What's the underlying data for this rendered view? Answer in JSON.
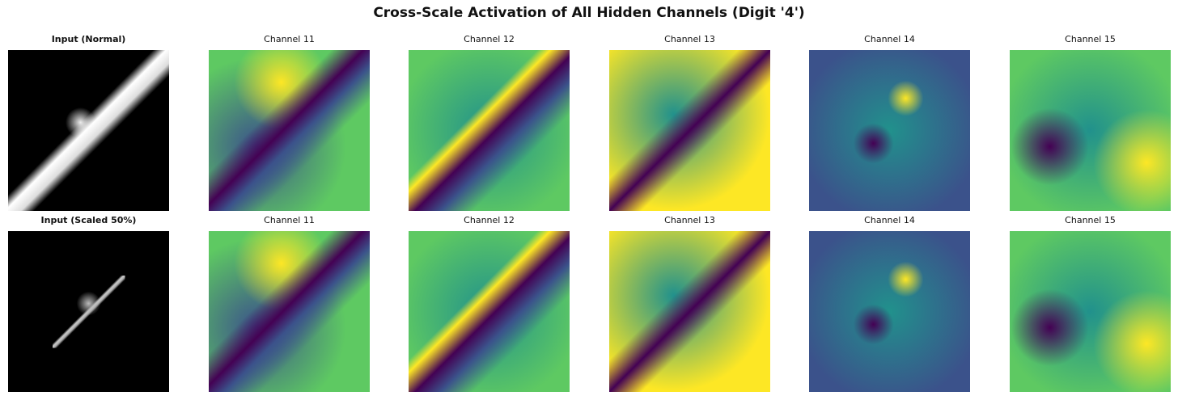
{
  "title": "Cross-Scale Activation of All Hidden Channels (Digit '4')",
  "rows": [
    {
      "panels": [
        {
          "title": "Input (Normal)"
        },
        {
          "title": "Channel 11"
        },
        {
          "title": "Channel 12"
        },
        {
          "title": "Channel 13"
        },
        {
          "title": "Channel 14"
        },
        {
          "title": "Channel 15"
        }
      ]
    },
    {
      "panels": [
        {
          "title": "Input (Scaled 50%)"
        },
        {
          "title": "Channel 11"
        },
        {
          "title": "Channel 12"
        },
        {
          "title": "Channel 13"
        },
        {
          "title": "Channel 14"
        },
        {
          "title": "Channel 15"
        }
      ]
    }
  ]
}
